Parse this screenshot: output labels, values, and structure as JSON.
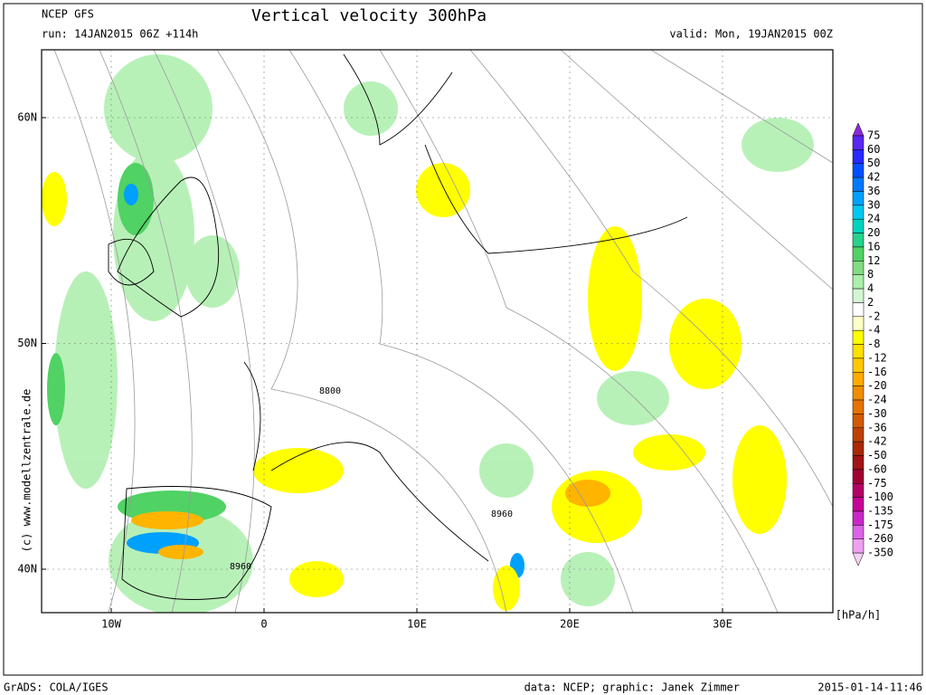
{
  "header": {
    "model": "NCEP GFS",
    "title": "Vertical velocity 300hPa",
    "run": "run: 14JAN2015 06Z +114h",
    "valid": "valid: Mon, 19JAN2015 00Z"
  },
  "map": {
    "lat_ticks": [
      {
        "value": 60,
        "label": "60N"
      },
      {
        "value": 50,
        "label": "50N"
      },
      {
        "value": 40,
        "label": "40N"
      }
    ],
    "lon_ticks": [
      {
        "value": -10,
        "label": "10W"
      },
      {
        "value": 0,
        "label": "0"
      },
      {
        "value": 10,
        "label": "10E"
      },
      {
        "value": 20,
        "label": "20E"
      },
      {
        "value": 30,
        "label": "30E"
      }
    ],
    "contour_labels": [
      "8800",
      "8960",
      "8960"
    ],
    "watermark": "(c) www.modellzentrale.de"
  },
  "colorbar": {
    "levels": [
      75,
      60,
      50,
      42,
      36,
      30,
      24,
      20,
      16,
      12,
      8,
      4,
      2,
      -2,
      -4,
      -8,
      -12,
      -16,
      -20,
      -24,
      -30,
      -36,
      -42,
      -50,
      -60,
      -75,
      -100,
      -135,
      -175,
      -260,
      -350
    ],
    "colors": [
      "#8c28dc",
      "#5a28f0",
      "#2828ff",
      "#0050ff",
      "#0078ff",
      "#00a0ff",
      "#00c8f0",
      "#00d2be",
      "#28d28c",
      "#50d264",
      "#82dc82",
      "#aaf0aa",
      "#d2f5d2",
      "#ffffff",
      "#ffffc8",
      "#ffff00",
      "#ffe100",
      "#ffc800",
      "#ffaa00",
      "#f08c00",
      "#e67300",
      "#d25a00",
      "#be4100",
      "#aa2800",
      "#a01414",
      "#a00032",
      "#b40064",
      "#c80096",
      "#c828c8",
      "#dc64e6",
      "#f0a0f0",
      "#f5d2f5"
    ],
    "unit": "[hPa/h]"
  },
  "footer": {
    "left": "GrADS: COLA/IGES",
    "center": "data: NCEP; graphic: Janek Zimmer",
    "right": "2015-01-14-11:46"
  }
}
